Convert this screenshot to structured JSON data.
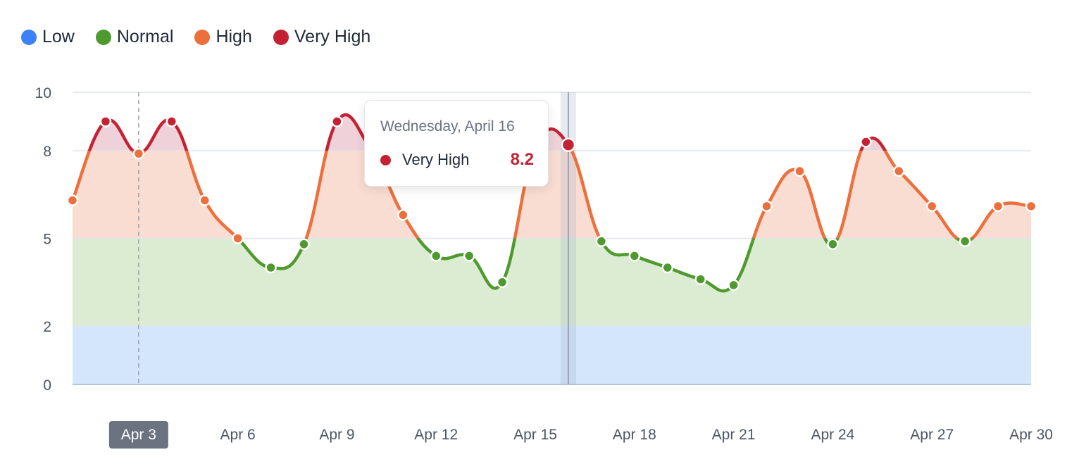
{
  "legend": [
    {
      "label": "Low",
      "color": "#3b82f6"
    },
    {
      "label": "Normal",
      "color": "#4f9a2f"
    },
    {
      "label": "High",
      "color": "#ec6f3c"
    },
    {
      "label": "Very High",
      "color": "#c42233"
    }
  ],
  "tooltip": {
    "date": "Wednesday, April 16",
    "label": "Very High",
    "value": "8.2",
    "color": "#c42233"
  },
  "chart_data": {
    "type": "area",
    "title": "",
    "xlabel": "",
    "ylabel": "",
    "ylim": [
      0,
      10
    ],
    "yticks": [
      0,
      2,
      5,
      8,
      10
    ],
    "xlim": [
      1,
      30
    ],
    "xticks": [
      {
        "day": 3,
        "label": "Apr 3"
      },
      {
        "day": 6,
        "label": "Apr 6"
      },
      {
        "day": 9,
        "label": "Apr 9"
      },
      {
        "day": 12,
        "label": "Apr 12"
      },
      {
        "day": 15,
        "label": "Apr 15"
      },
      {
        "day": 18,
        "label": "Apr 18"
      },
      {
        "day": 21,
        "label": "Apr 21"
      },
      {
        "day": 24,
        "label": "Apr 24"
      },
      {
        "day": 27,
        "label": "Apr 27"
      },
      {
        "day": 30,
        "label": "Apr 30"
      }
    ],
    "highlighted_xtick": 3,
    "hover_day": 16,
    "bands": [
      {
        "name": "Low",
        "from": 0,
        "to": 2,
        "fill": "#d3e6fb",
        "line": "#3b82f6"
      },
      {
        "name": "Normal",
        "from": 2,
        "to": 5,
        "fill": "#dbecd2",
        "line": "#4f9a2f"
      },
      {
        "name": "High",
        "from": 5,
        "to": 8,
        "fill": "#f9ddd2",
        "line": "#ec6f3c"
      },
      {
        "name": "Very High",
        "from": 8,
        "to": 10,
        "fill": "#efd2d9",
        "line": "#c42233"
      }
    ],
    "series": [
      {
        "x": [
          1,
          2,
          3,
          4,
          5,
          6,
          7,
          8,
          9,
          10,
          11,
          12,
          13,
          14,
          15,
          16,
          17,
          18,
          19,
          20,
          21,
          22,
          23,
          24,
          25,
          26,
          27,
          28,
          29,
          30
        ],
        "values": [
          6.3,
          9.0,
          7.9,
          9.0,
          6.3,
          5.0,
          4.0,
          4.8,
          9.0,
          8.1,
          5.8,
          4.4,
          4.4,
          3.5,
          8.1,
          8.2,
          4.9,
          4.4,
          4.0,
          3.6,
          3.4,
          6.1,
          7.3,
          4.8,
          8.3,
          7.3,
          6.1,
          4.9,
          6.1,
          6.1
        ]
      }
    ]
  }
}
